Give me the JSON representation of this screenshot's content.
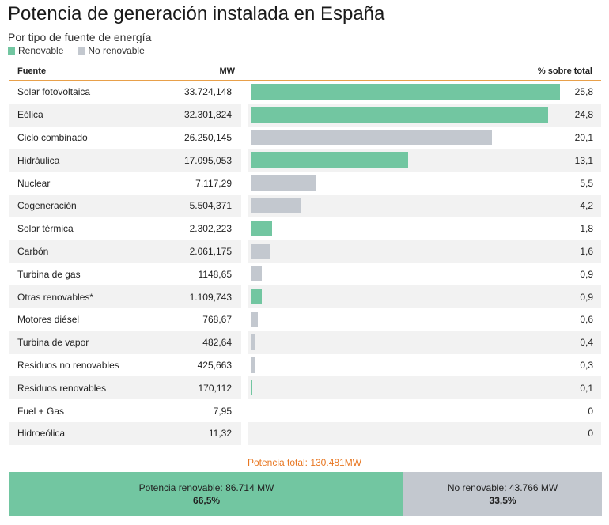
{
  "title": "Potencia de generación instalada en España",
  "subtitle": "Por tipo de fuente de energía",
  "legend": [
    {
      "label": "Renovable",
      "color": "#72c6a1"
    },
    {
      "label": "No renovable",
      "color": "#c3c8cf"
    }
  ],
  "table_header": {
    "fuente": "Fuente",
    "mw": "MW",
    "pct": "% sobre total"
  },
  "chart_data": {
    "type": "bar",
    "orientation": "horizontal",
    "xlim": [
      0,
      26
    ],
    "categories": [
      "Solar fotovoltaica",
      "Eólica",
      "Ciclo combinado",
      "Hidráulica",
      "Nuclear",
      "Cogeneración",
      "Solar térmica",
      "Carbón",
      "Turbina de gas",
      "Otras renovables*",
      "Motores diésel",
      "Turbina de vapor",
      "Residuos no renovables",
      "Residuos renovables",
      "Fuel + Gas",
      "Hidroeólica"
    ],
    "mw_labels": [
      "33.724,148",
      "32.301,824",
      "26.250,145",
      "17.095,053",
      "7.117,29",
      "5.504,371",
      "2.302,223",
      "2.061,175",
      "1148,65",
      "1.109,743",
      "768,67",
      "482,64",
      "425,663",
      "170,112",
      "7,95",
      "11,32"
    ],
    "pct_labels": [
      "25,8",
      "24,8",
      "20,1",
      "13,1",
      "5,5",
      "4,2",
      "1,8",
      "1,6",
      "0,9",
      "0,9",
      "0,6",
      "0,4",
      "0,3",
      "0,1",
      "0",
      "0"
    ],
    "values": [
      25.8,
      24.8,
      20.1,
      13.1,
      5.5,
      4.2,
      1.8,
      1.6,
      0.9,
      0.9,
      0.6,
      0.4,
      0.3,
      0.1,
      0,
      0
    ],
    "renewable": [
      true,
      true,
      false,
      true,
      false,
      false,
      true,
      false,
      false,
      true,
      false,
      false,
      false,
      true,
      false,
      true
    ]
  },
  "total_label": "Potencia total: 130.481MW",
  "summary": {
    "renewable": {
      "label": "Potencia renovable: 86.714 MW",
      "pct_label": "66,5%",
      "share": 66.5,
      "color": "#72c6a1"
    },
    "non_renewable": {
      "label": "No renovable: 43.766 MW",
      "pct_label": "33,5%",
      "share": 33.5,
      "color": "#c3c8cf"
    }
  }
}
